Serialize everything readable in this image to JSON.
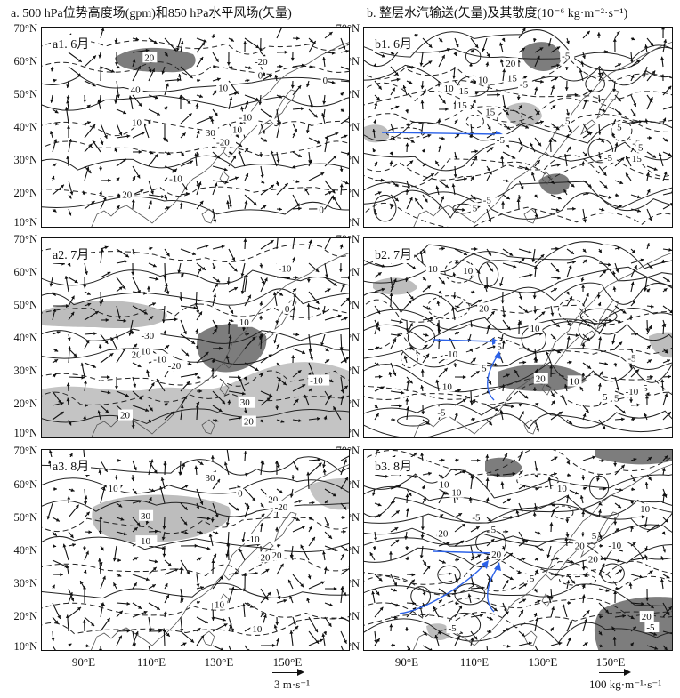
{
  "column_titles": {
    "a": "a. 500 hPa位势高度场(gpm)和850 hPa水平风场(矢量)",
    "b": "b. 整层水汽输送(矢量)及其散度(10⁻⁶ kg·m⁻²·s⁻¹)"
  },
  "panels": [
    {
      "id": "a1",
      "label": "a1. 6月",
      "contours": [
        "-20",
        "40",
        "30",
        "20",
        "-10",
        "-10",
        "-20",
        "10",
        "0",
        "10",
        "20",
        "0",
        "10",
        "0"
      ]
    },
    {
      "id": "a2",
      "label": "a2. 7月",
      "contours": [
        "20",
        "-20",
        "30",
        "20",
        "-30",
        "-10",
        "20",
        "10",
        "10",
        "0",
        "-10",
        "-10",
        "20"
      ]
    },
    {
      "id": "a3",
      "label": "a3. 8月",
      "contours": [
        "20",
        "30",
        "-20",
        "30",
        "20",
        "-10",
        "10",
        "20",
        "10",
        "10",
        "-10",
        "0"
      ]
    },
    {
      "id": "b1",
      "label": "b1. 6月",
      "contours": [
        "5",
        "5",
        "-5",
        "5",
        "-5",
        "10",
        "15",
        "-5",
        "15",
        "-5",
        "20",
        "-5",
        "-5",
        "15",
        "10",
        "15",
        "-15",
        "5"
      ]
    },
    {
      "id": "b2",
      "label": "b2. 7月",
      "contours": [
        "5",
        "5",
        "-5",
        "5",
        "-5",
        "10",
        "5",
        "-10",
        "10",
        "20",
        "10",
        "20",
        "-10",
        "5",
        "10",
        "10"
      ]
    },
    {
      "id": "b3",
      "label": "b3. 8月",
      "contours": [
        "10",
        "10",
        "-5",
        "5",
        "5",
        "20",
        "5",
        "-5",
        "10",
        "20",
        "-10",
        "20",
        "10",
        "20",
        "-5",
        "20"
      ]
    }
  ],
  "y_ticks": [
    "70°N",
    "60°N",
    "50°N",
    "40°N",
    "30°N",
    "20°N",
    "10°N"
  ],
  "x_ticks": [
    "90°E",
    "110°E",
    "130°E",
    "150°E"
  ],
  "scales": {
    "a": "3 m·s⁻¹",
    "b": "100 kg·m⁻¹·s⁻¹"
  }
}
